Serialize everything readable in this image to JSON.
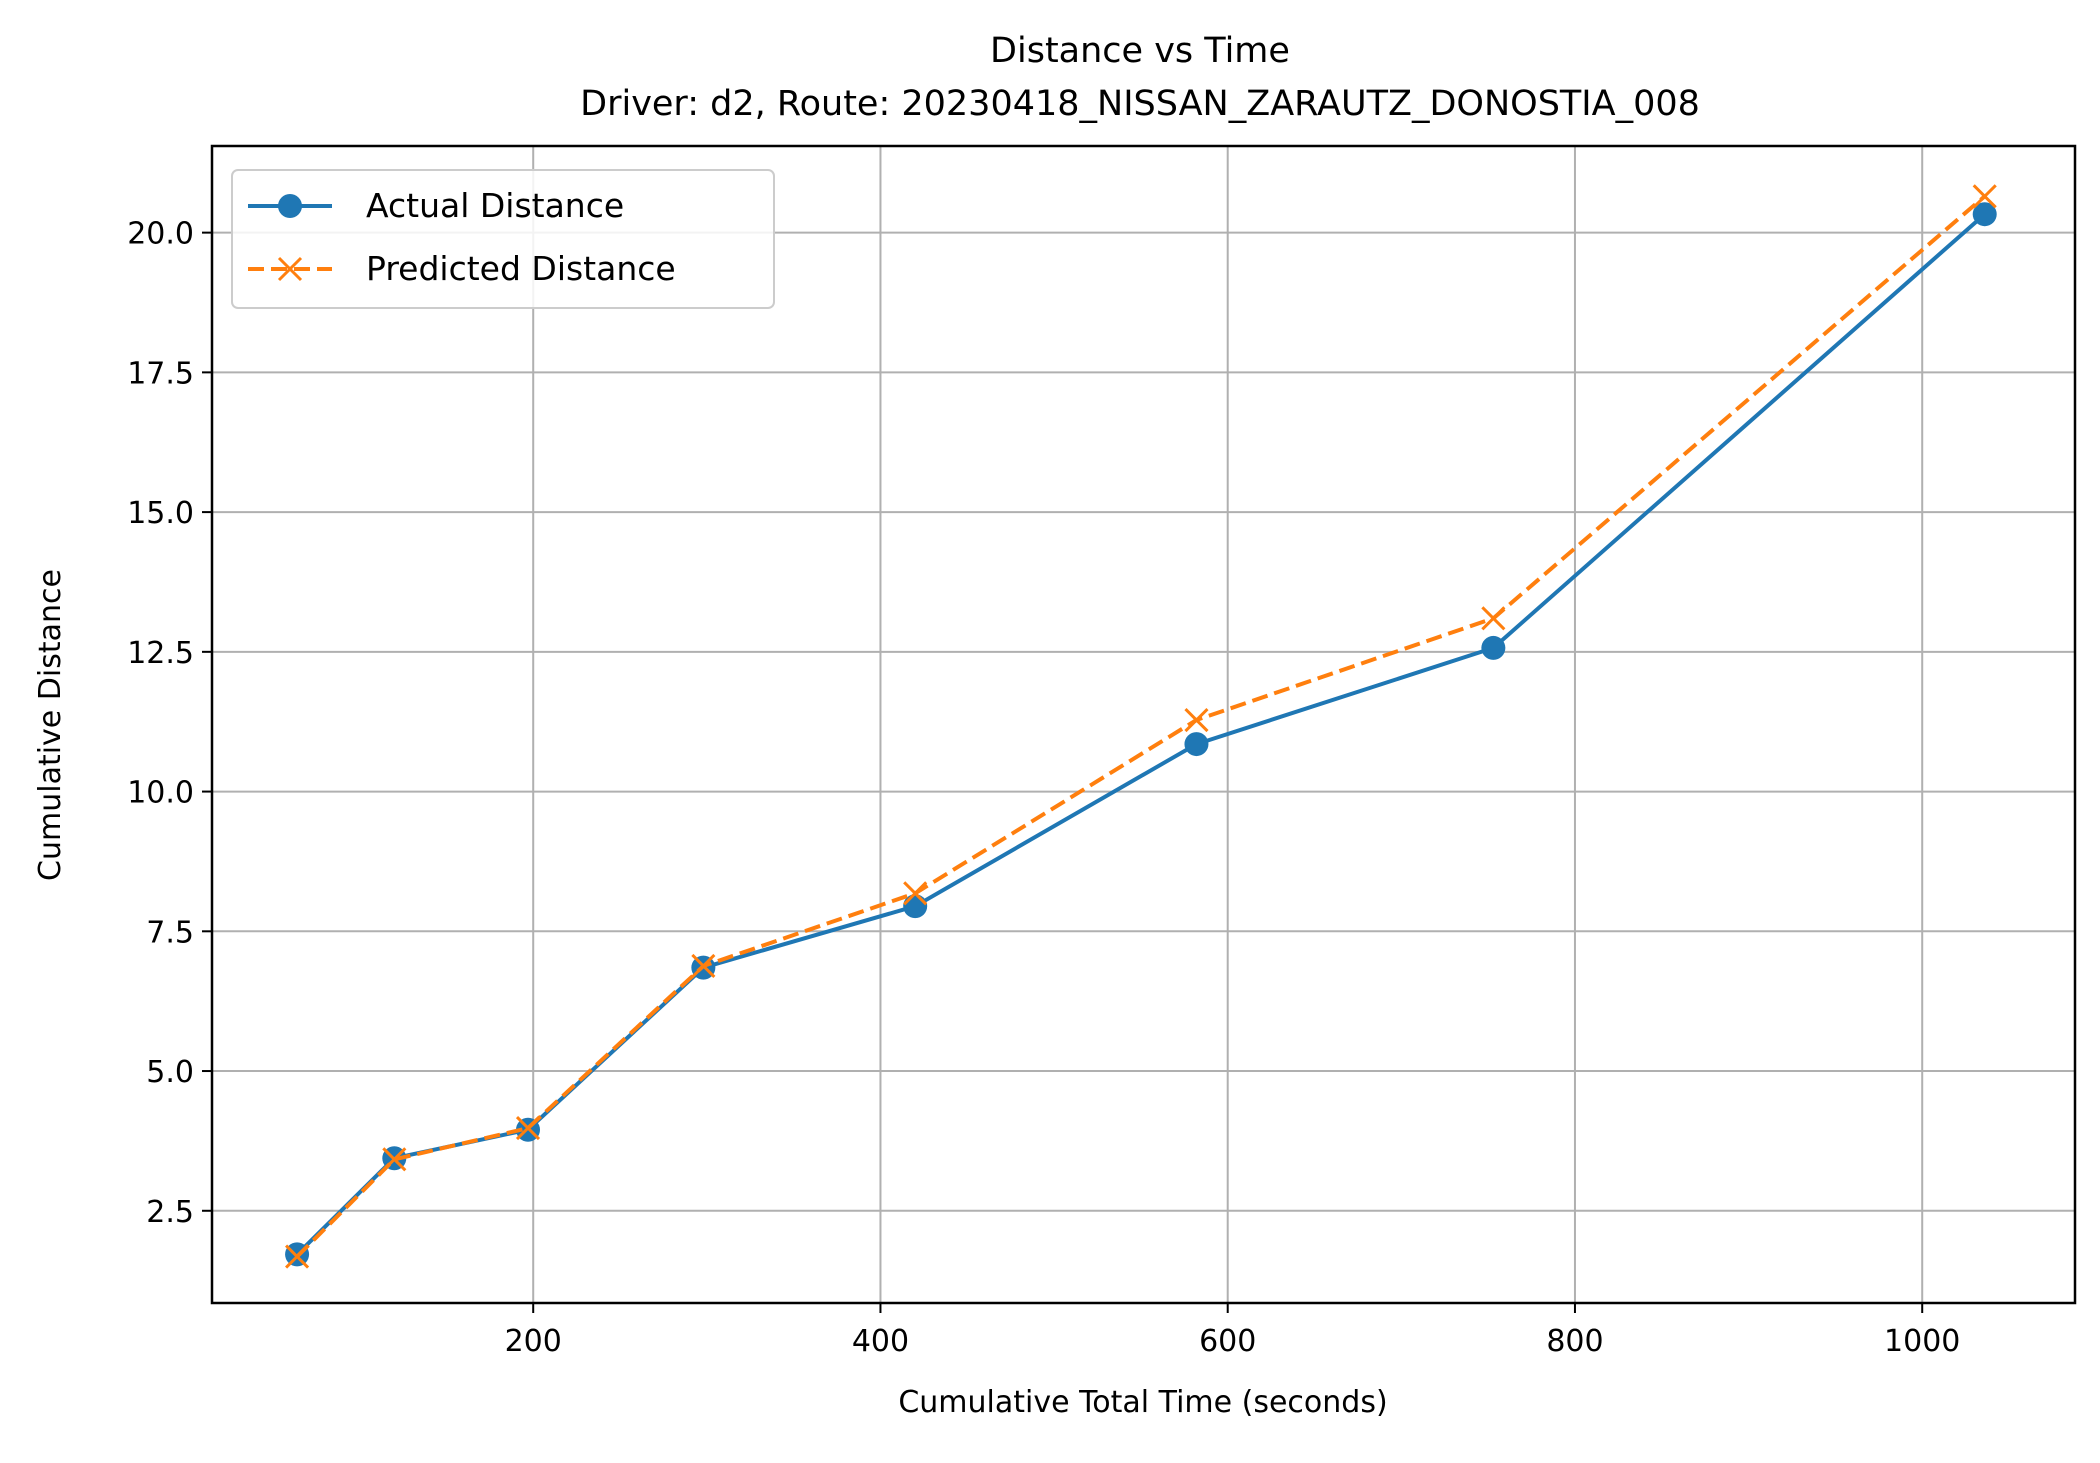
{
  "chart_data": {
    "type": "line",
    "title": "Distance vs Time",
    "subtitle": "Driver: d2, Route: 20230418_NISSAN_ZARAUTZ_DONOSTIA_008",
    "xlabel": "Cumulative Total Time (seconds)",
    "ylabel": "Cumulative Distance",
    "xlim": [
      15,
      1088
    ],
    "ylim": [
      0.85,
      21.55
    ],
    "xticks": [
      200,
      400,
      600,
      800,
      1000
    ],
    "yticks": [
      2.5,
      5.0,
      7.5,
      10.0,
      12.5,
      15.0,
      17.5,
      20.0
    ],
    "ytick_labels": [
      "2.5",
      "5.0",
      "7.5",
      "10.0",
      "12.5",
      "15.0",
      "17.5",
      "20.0"
    ],
    "grid": true,
    "legend_position": "top-left",
    "series": [
      {
        "name": "Actual Distance",
        "color": "#1f77b4",
        "line_style": "solid",
        "marker": "circle",
        "x": [
          64,
          120,
          197,
          298,
          420,
          582,
          753,
          1036
        ],
        "y": [
          1.72,
          3.44,
          3.95,
          6.85,
          7.95,
          10.85,
          12.57,
          20.33
        ]
      },
      {
        "name": "Predicted Distance",
        "color": "#ff7f0e",
        "line_style": "dashed",
        "marker": "x",
        "x": [
          64,
          120,
          197,
          298,
          420,
          582,
          753,
          1036
        ],
        "y": [
          1.68,
          3.42,
          3.98,
          6.88,
          8.18,
          11.28,
          13.1,
          20.65
        ]
      }
    ]
  }
}
